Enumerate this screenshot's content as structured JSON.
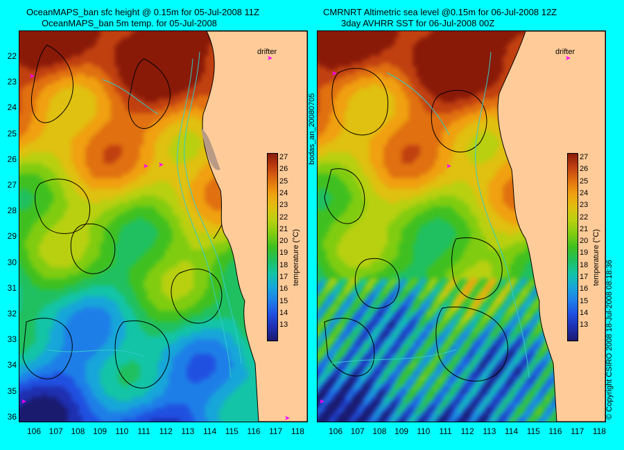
{
  "left_panel": {
    "title_line1": "OceanMAPS_ban sfc height @ 0.15m for 05-Jul-2008 11Z",
    "title_line2": "OceanMAPS_ban 5m temp. for 05-Jul-2008",
    "drifter_label": "drifter"
  },
  "right_panel": {
    "title_line1": "CMRNRT Altimetric sea level  @0.15m  for 06-Jul-2008 12Z",
    "title_line2": "3day AVHRR SST for 06-Jul-2008 00Z",
    "drifter_label": "drifter"
  },
  "center_label": "bodas_an_20080705",
  "copyright": "© Copyright CSIRO 2008   18-Jul-2008 08:18:36",
  "latitude_ticks": [
    "22",
    "23",
    "24",
    "25",
    "26",
    "27",
    "28",
    "29",
    "30",
    "31",
    "32",
    "33",
    "34",
    "35",
    "36"
  ],
  "longitude_ticks": [
    "106",
    "107",
    "108",
    "109",
    "110",
    "111",
    "112",
    "113",
    "114",
    "115",
    "116",
    "117",
    "118"
  ],
  "colorbar": {
    "label": "temperature (°C)",
    "ticks": [
      "27",
      "26",
      "25",
      "24",
      "23",
      "22",
      "21",
      "20",
      "19",
      "18",
      "17",
      "16",
      "15",
      "14",
      "13"
    ],
    "colors": [
      "#1a1a6e",
      "#1e2fb0",
      "#2050e0",
      "#1e7ee8",
      "#17a6d9",
      "#13c4a6",
      "#20c060",
      "#40c020",
      "#80cc10",
      "#b8d010",
      "#e0c010",
      "#f0a010",
      "#e07010",
      "#c04010",
      "#8a1a08"
    ]
  },
  "colors": {
    "background": "#00ffff",
    "land": "#ffcc99",
    "land_shade": "#b89a85",
    "drifter": "#ff00ff",
    "coastline": "#000000"
  }
}
